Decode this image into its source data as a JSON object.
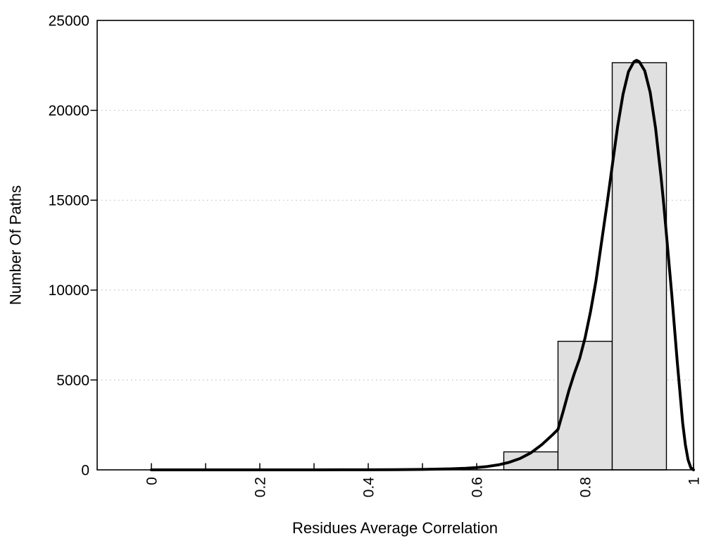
{
  "chart_data": {
    "type": "bar",
    "subtype": "histogram-with-fitted-curve",
    "title": "",
    "xlabel": "Residues Average Correlation",
    "ylabel": "Number Of Paths",
    "xlim": [
      -0.1,
      1.0
    ],
    "ylim": [
      0,
      25000
    ],
    "grid": "horizontal-dotted",
    "legend_position": "none",
    "x_ticks": {
      "major_values": [
        0,
        0.2,
        0.4,
        0.6,
        0.8,
        1
      ],
      "major_labels": [
        "0",
        "0.2",
        "0.4",
        "0.6",
        "0.8",
        "1"
      ],
      "minor_values": [
        0.1,
        0.3,
        0.5,
        0.7,
        0.9
      ],
      "label_rotation_deg": -90
    },
    "y_ticks": {
      "label_values": [
        0,
        5000,
        10000,
        15000,
        20000,
        25000
      ],
      "labels": [
        "0",
        "5000",
        "10000",
        "15000",
        "20000",
        "25000"
      ],
      "tick_mark_values": [
        5000,
        10000,
        15000,
        20000
      ]
    },
    "gridline_values": [
      5000,
      10000,
      15000,
      20000
    ],
    "bars": [
      {
        "x_start": 0.65,
        "x_end": 0.75,
        "count": 1000
      },
      {
        "x_start": 0.75,
        "x_end": 0.85,
        "count": 7150
      },
      {
        "x_start": 0.85,
        "x_end": 0.95,
        "count": 22650
      }
    ],
    "curve": {
      "name": "fitted-distribution-curve",
      "peak": {
        "x": 0.895,
        "y": 22780
      },
      "points": [
        [
          0.0,
          0
        ],
        [
          0.05,
          0
        ],
        [
          0.1,
          0
        ],
        [
          0.15,
          0
        ],
        [
          0.2,
          0
        ],
        [
          0.25,
          0
        ],
        [
          0.3,
          0
        ],
        [
          0.35,
          2
        ],
        [
          0.4,
          5
        ],
        [
          0.45,
          12
        ],
        [
          0.5,
          25
        ],
        [
          0.55,
          55
        ],
        [
          0.58,
          90
        ],
        [
          0.6,
          130
        ],
        [
          0.62,
          190
        ],
        [
          0.64,
          280
        ],
        [
          0.66,
          420
        ],
        [
          0.68,
          630
        ],
        [
          0.7,
          950
        ],
        [
          0.72,
          1400
        ],
        [
          0.74,
          1950
        ],
        [
          0.75,
          2250
        ],
        [
          0.76,
          3300
        ],
        [
          0.77,
          4400
        ],
        [
          0.78,
          5350
        ],
        [
          0.79,
          6200
        ],
        [
          0.8,
          7350
        ],
        [
          0.81,
          8800
        ],
        [
          0.82,
          10500
        ],
        [
          0.83,
          12600
        ],
        [
          0.84,
          14700
        ],
        [
          0.85,
          16900
        ],
        [
          0.86,
          19100
        ],
        [
          0.87,
          20900
        ],
        [
          0.88,
          22150
        ],
        [
          0.89,
          22700
        ],
        [
          0.895,
          22780
        ],
        [
          0.9,
          22700
        ],
        [
          0.91,
          22200
        ],
        [
          0.92,
          21000
        ],
        [
          0.93,
          19000
        ],
        [
          0.94,
          16300
        ],
        [
          0.945,
          14800
        ],
        [
          0.95,
          13100
        ],
        [
          0.96,
          9700
        ],
        [
          0.97,
          6000
        ],
        [
          0.98,
          2600
        ],
        [
          0.985,
          1400
        ],
        [
          0.99,
          550
        ],
        [
          0.995,
          120
        ],
        [
          1.0,
          0
        ]
      ]
    },
    "colors": {
      "background": "#ffffff",
      "bar_fill": "#e0e0e0",
      "bar_border": "#000000",
      "curve": "#000000",
      "axis": "#000000",
      "gridline": "#b5b5b5",
      "text": "#000000"
    }
  }
}
